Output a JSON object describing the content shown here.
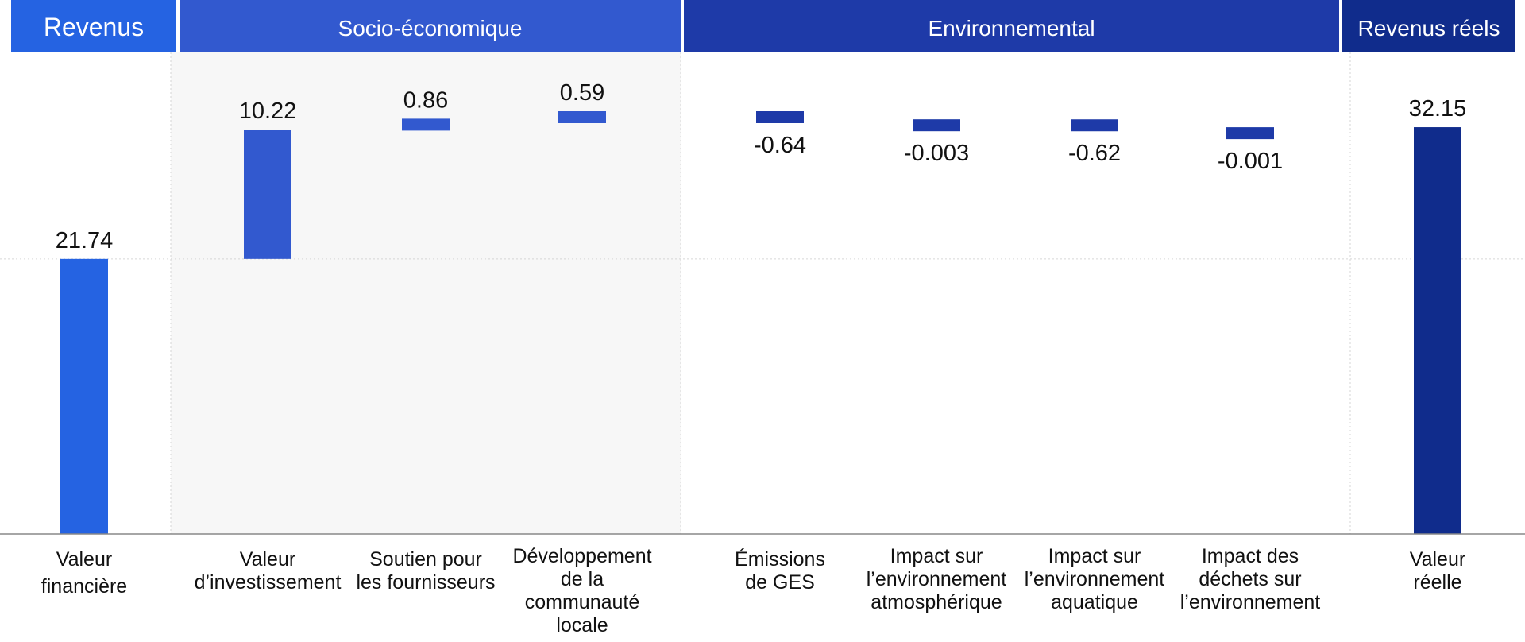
{
  "chart_data": {
    "type": "bar",
    "variant": "waterfall",
    "groups": [
      {
        "label": "Revenus",
        "color": "#2563e2"
      },
      {
        "label": "Socio-économique",
        "color": "#3259cf"
      },
      {
        "label": "Environnemental",
        "color": "#1e3aa8"
      },
      {
        "label": "Revenus réels",
        "color": "#102c8c"
      }
    ],
    "categories": [
      {
        "label": [
          "Valeur",
          "financière"
        ],
        "value": 21.74,
        "value_label": "21.74",
        "kind": "total",
        "group": 0
      },
      {
        "label": [
          "Valeur",
          "d’investissement"
        ],
        "value": 10.22,
        "value_label": "10.22",
        "kind": "delta",
        "group": 1
      },
      {
        "label": [
          "Soutien pour",
          "les fournisseurs"
        ],
        "value": 0.86,
        "value_label": "0.86",
        "kind": "delta",
        "group": 1
      },
      {
        "label": [
          "Développement",
          "de la",
          "communauté",
          "locale"
        ],
        "value": 0.59,
        "value_label": "0.59",
        "kind": "delta",
        "group": 1
      },
      {
        "label": [
          "Émissions",
          "de GES"
        ],
        "value": -0.64,
        "value_label": "-0.64",
        "kind": "delta",
        "group": 2
      },
      {
        "label": [
          "Impact sur",
          "l’environnement",
          "atmosphérique"
        ],
        "value": -0.003,
        "value_label": "-0.003",
        "kind": "delta",
        "group": 2
      },
      {
        "label": [
          "Impact sur",
          "l’environnement",
          "aquatique"
        ],
        "value": -0.62,
        "value_label": "-0.62",
        "kind": "delta",
        "group": 2
      },
      {
        "label": [
          "Impact des",
          "déchets sur",
          "l’environnement"
        ],
        "value": -0.001,
        "value_label": "-0.001",
        "kind": "delta",
        "group": 2
      },
      {
        "label": [
          "Valeur",
          "réelle"
        ],
        "value": 32.15,
        "value_label": "32.15",
        "kind": "total",
        "group": 3
      }
    ],
    "grid": true,
    "legend": "none"
  }
}
